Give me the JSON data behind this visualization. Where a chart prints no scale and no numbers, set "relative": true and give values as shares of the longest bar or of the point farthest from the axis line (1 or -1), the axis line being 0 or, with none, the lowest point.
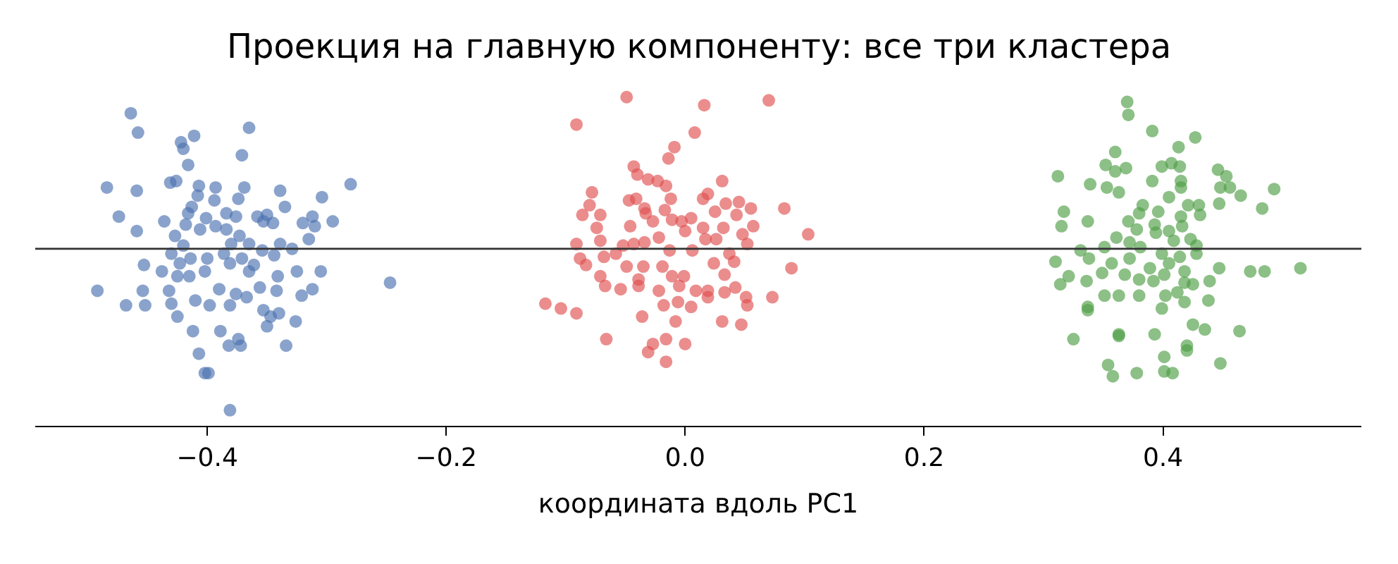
{
  "chart_data": {
    "type": "scatter",
    "title": "Проекция на главную компоненту: все три кластера",
    "xlabel": "координата вдоль PC1",
    "relative": true,
    "xlim": [
      -0.544,
      0.566
    ],
    "xticks": [
      {
        "value": -0.4,
        "label": "−0.4"
      },
      {
        "value": -0.2,
        "label": "−0.2"
      },
      {
        "value": 0.0,
        "label": "0.0"
      },
      {
        "value": 0.2,
        "label": "0.2"
      },
      {
        "value": 0.4,
        "label": "0.4"
      }
    ],
    "tick_labels": "x",
    "grid": false,
    "marker": "circle",
    "ref_lines": [
      {
        "axis": "y",
        "value": 0,
        "color": "#333333"
      }
    ],
    "series": [
      {
        "color": "#4c72b0",
        "x": [
          -0.464,
          -0.458,
          -0.422,
          -0.411,
          -0.42,
          -0.365,
          -0.371,
          -0.416,
          -0.484,
          -0.459,
          -0.431,
          -0.426,
          -0.407,
          -0.393,
          -0.369,
          -0.339,
          -0.304,
          -0.28,
          -0.474,
          -0.459,
          -0.436,
          -0.418,
          -0.416,
          -0.413,
          -0.408,
          -0.394,
          -0.374,
          -0.401,
          -0.384,
          -0.376,
          -0.406,
          -0.393,
          -0.384,
          -0.373,
          -0.358,
          -0.35,
          -0.353,
          -0.345,
          -0.335,
          -0.32,
          -0.312,
          -0.31,
          -0.295,
          -0.315,
          -0.339,
          -0.329,
          -0.427,
          -0.42,
          -0.43,
          -0.414,
          -0.4,
          -0.386,
          -0.38,
          -0.365,
          -0.354,
          -0.371,
          -0.344,
          -0.381,
          -0.361,
          -0.453,
          -0.438,
          -0.423,
          -0.425,
          -0.415,
          -0.402,
          -0.365,
          -0.341,
          -0.325,
          -0.305,
          -0.247,
          -0.492,
          -0.454,
          -0.432,
          -0.39,
          -0.376,
          -0.356,
          -0.342,
          -0.321,
          -0.312,
          -0.468,
          -0.452,
          -0.43,
          -0.41,
          -0.398,
          -0.381,
          -0.367,
          -0.353,
          -0.34,
          -0.425,
          -0.347,
          -0.35,
          -0.326,
          -0.412,
          -0.389,
          -0.382,
          -0.374,
          -0.372,
          -0.334,
          -0.407,
          -0.402,
          -0.399,
          -0.381
        ],
        "values": [
          0.84,
          0.72,
          0.66,
          0.7,
          0.62,
          0.75,
          0.58,
          0.52,
          0.38,
          0.36,
          0.41,
          0.42,
          0.39,
          0.38,
          0.38,
          0.36,
          0.32,
          0.4,
          0.2,
          0.11,
          0.17,
          0.15,
          0.22,
          0.26,
          0.33,
          0.3,
          0.31,
          0.19,
          0.22,
          0.2,
          0.12,
          0.14,
          0.12,
          0.08,
          0.2,
          0.21,
          0.17,
          0.16,
          0.26,
          0.16,
          0.2,
          0.14,
          0.17,
          0.06,
          0.03,
          0.0,
          0.08,
          0.02,
          -0.03,
          -0.06,
          -0.06,
          -0.03,
          0.03,
          0.03,
          -0.01,
          -0.06,
          -0.04,
          -0.09,
          -0.1,
          -0.1,
          -0.14,
          -0.09,
          -0.17,
          -0.17,
          -0.14,
          -0.14,
          -0.17,
          -0.14,
          -0.14,
          -0.21,
          -0.26,
          -0.26,
          -0.26,
          -0.25,
          -0.28,
          -0.24,
          -0.26,
          -0.29,
          -0.25,
          -0.35,
          -0.35,
          -0.34,
          -0.32,
          -0.35,
          -0.35,
          -0.3,
          -0.38,
          -0.4,
          -0.42,
          -0.42,
          -0.48,
          -0.45,
          -0.51,
          -0.51,
          -0.6,
          -0.56,
          -0.6,
          -0.6,
          -0.65,
          -0.77,
          -0.77,
          -1.0
        ]
      },
      {
        "color": "#e05050",
        "x": [
          -0.049,
          0.016,
          0.07,
          -0.091,
          0.008,
          -0.009,
          -0.014,
          -0.043,
          -0.04,
          -0.031,
          -0.023,
          -0.016,
          0.031,
          -0.078,
          -0.08,
          -0.086,
          -0.071,
          -0.047,
          -0.041,
          -0.012,
          -0.034,
          -0.033,
          -0.027,
          -0.017,
          -0.011,
          -0.003,
          0.005,
          0.015,
          0.019,
          0.025,
          0.034,
          0.045,
          0.055,
          0.043,
          0.083,
          -0.074,
          -0.046,
          0.0,
          0.015,
          0.032,
          0.057,
          0.048,
          0.103,
          -0.091,
          -0.071,
          -0.052,
          -0.043,
          -0.034,
          -0.022,
          -0.013,
          0.006,
          0.017,
          0.026,
          0.052,
          -0.088,
          -0.083,
          -0.068,
          -0.058,
          -0.049,
          -0.035,
          -0.019,
          0.024,
          0.037,
          0.041,
          0.089,
          -0.071,
          -0.067,
          -0.054,
          -0.039,
          -0.039,
          -0.011,
          -0.001,
          -0.005,
          -0.022,
          0.009,
          0.019,
          0.033,
          0.033,
          0.042,
          0.051,
          0.073,
          -0.117,
          -0.104,
          -0.091,
          -0.018,
          -0.006,
          0.005,
          0.019,
          0.052,
          -0.036,
          -0.008,
          0.031,
          0.047,
          -0.066,
          -0.016,
          0.0,
          -0.027,
          -0.031,
          -0.016
        ],
        "values": [
          0.94,
          0.89,
          0.92,
          0.77,
          0.72,
          0.63,
          0.56,
          0.51,
          0.46,
          0.43,
          0.42,
          0.39,
          0.42,
          0.35,
          0.27,
          0.21,
          0.21,
          0.3,
          0.31,
          0.31,
          0.25,
          0.22,
          0.17,
          0.24,
          0.18,
          0.17,
          0.19,
          0.31,
          0.34,
          0.23,
          0.28,
          0.29,
          0.25,
          0.21,
          0.25,
          0.13,
          0.14,
          0.11,
          0.13,
          0.13,
          0.14,
          0.09,
          0.09,
          0.03,
          0.05,
          0.02,
          0.03,
          0.04,
          0.07,
          -0.01,
          -0.01,
          0.06,
          0.06,
          0.03,
          -0.06,
          -0.1,
          -0.05,
          -0.03,
          -0.11,
          -0.11,
          -0.11,
          -0.09,
          -0.03,
          -0.08,
          -0.12,
          -0.17,
          -0.23,
          -0.25,
          -0.19,
          -0.23,
          -0.17,
          -0.17,
          -0.23,
          -0.26,
          -0.26,
          -0.26,
          -0.16,
          -0.27,
          -0.24,
          -0.3,
          -0.3,
          -0.34,
          -0.37,
          -0.4,
          -0.35,
          -0.33,
          -0.36,
          -0.3,
          -0.35,
          -0.42,
          -0.45,
          -0.45,
          -0.47,
          -0.56,
          -0.56,
          -0.59,
          -0.59,
          -0.64,
          -0.7
        ]
      },
      {
        "color": "#4f9e45",
        "x": [
          0.37,
          0.371,
          0.391,
          0.427,
          0.413,
          0.36,
          0.352,
          0.36,
          0.369,
          0.399,
          0.407,
          0.414,
          0.312,
          0.339,
          0.353,
          0.363,
          0.391,
          0.415,
          0.415,
          0.446,
          0.453,
          0.448,
          0.456,
          0.465,
          0.493,
          0.405,
          0.383,
          0.38,
          0.396,
          0.421,
          0.43,
          0.431,
          0.415,
          0.447,
          0.483,
          0.317,
          0.315,
          0.337,
          0.371,
          0.378,
          0.393,
          0.394,
          0.405,
          0.416,
          0.361,
          0.351,
          0.372,
          0.381,
          0.409,
          0.423,
          0.428,
          0.331,
          0.338,
          0.31,
          0.357,
          0.372,
          0.399,
          0.405,
          0.414,
          0.428,
          0.321,
          0.314,
          0.336,
          0.349,
          0.368,
          0.38,
          0.389,
          0.392,
          0.401,
          0.418,
          0.418,
          0.425,
          0.439,
          0.447,
          0.473,
          0.485,
          0.515,
          0.351,
          0.363,
          0.38,
          0.402,
          0.412,
          0.418,
          0.438,
          0.337,
          0.337,
          0.399,
          0.425,
          0.435,
          0.464,
          0.325,
          0.363,
          0.363,
          0.393,
          0.42,
          0.42,
          0.401,
          0.448,
          0.354,
          0.358,
          0.378,
          0.401,
          0.408
        ],
        "values": [
          0.91,
          0.83,
          0.73,
          0.69,
          0.63,
          0.6,
          0.52,
          0.48,
          0.5,
          0.51,
          0.53,
          0.51,
          0.45,
          0.4,
          0.38,
          0.35,
          0.42,
          0.42,
          0.38,
          0.49,
          0.45,
          0.38,
          0.38,
          0.33,
          0.37,
          0.32,
          0.27,
          0.22,
          0.23,
          0.27,
          0.27,
          0.21,
          0.2,
          0.28,
          0.25,
          0.23,
          0.14,
          0.17,
          0.17,
          0.12,
          0.15,
          0.1,
          0.11,
          0.14,
          0.07,
          0.01,
          0.04,
          0.01,
          0.05,
          0.06,
          0.02,
          -0.01,
          -0.06,
          -0.08,
          -0.09,
          -0.06,
          -0.03,
          -0.09,
          -0.05,
          -0.03,
          -0.17,
          -0.22,
          -0.2,
          -0.15,
          -0.16,
          -0.19,
          -0.12,
          -0.2,
          -0.16,
          -0.14,
          -0.21,
          -0.22,
          -0.2,
          -0.12,
          -0.14,
          -0.14,
          -0.12,
          -0.29,
          -0.29,
          -0.29,
          -0.29,
          -0.27,
          -0.33,
          -0.32,
          -0.36,
          -0.38,
          -0.37,
          -0.47,
          -0.5,
          -0.51,
          -0.56,
          -0.53,
          -0.54,
          -0.53,
          -0.6,
          -0.63,
          -0.67,
          -0.71,
          -0.72,
          -0.79,
          -0.77,
          -0.76,
          -0.77
        ]
      }
    ]
  }
}
